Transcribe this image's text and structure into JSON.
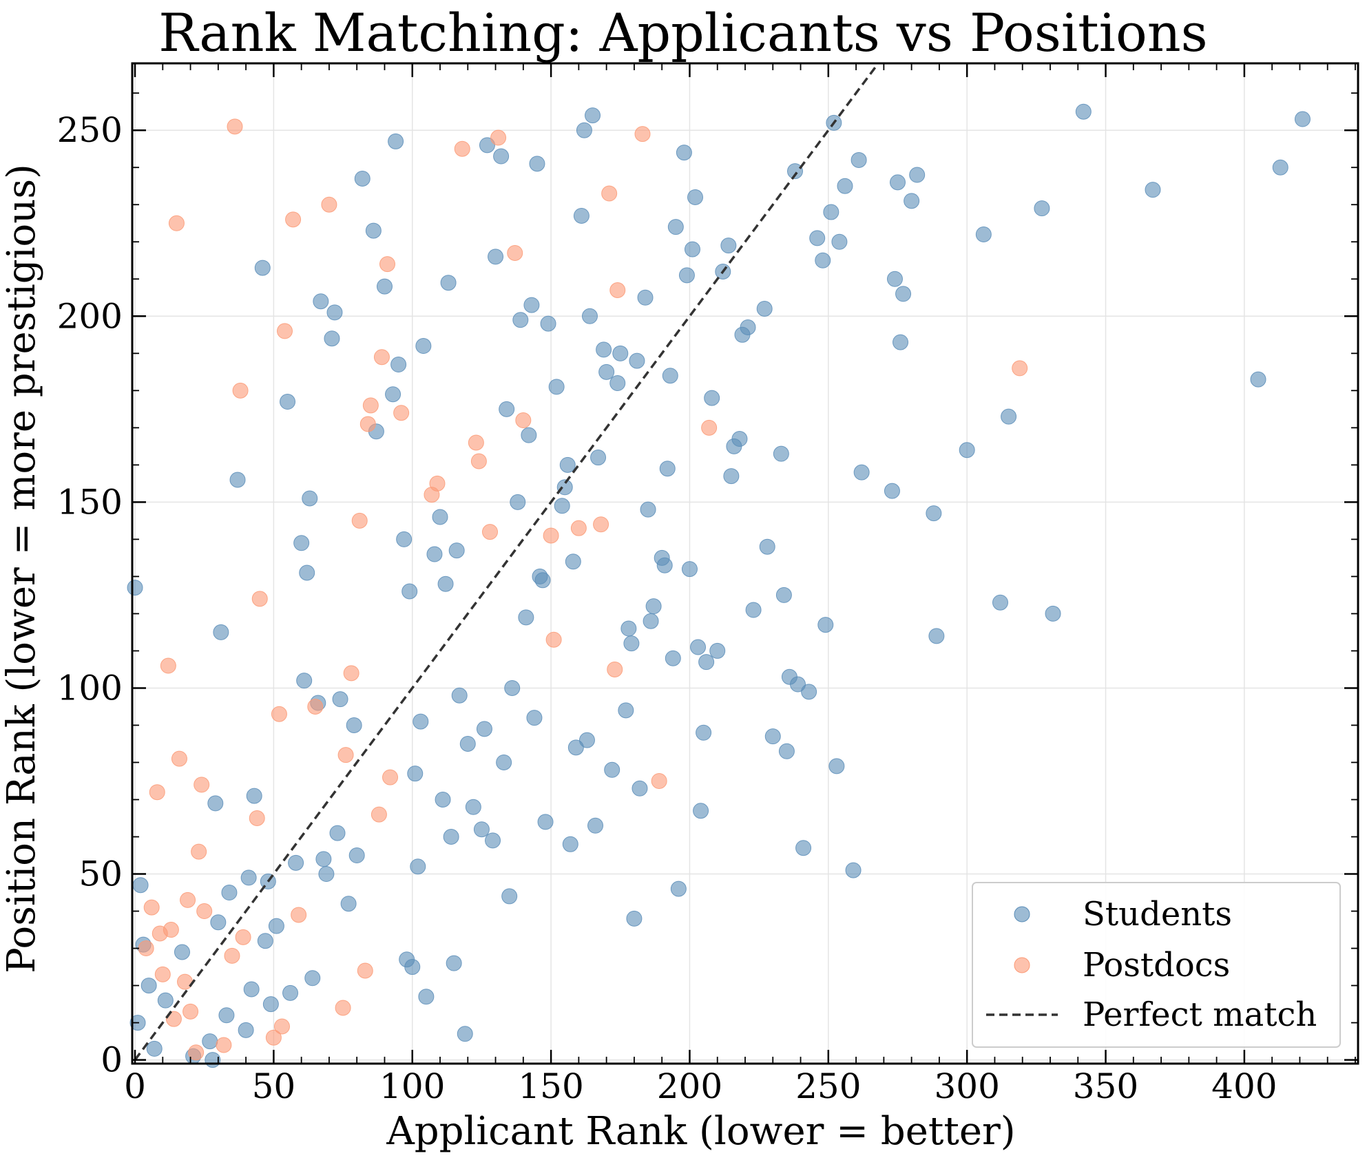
{
  "chart_data": {
    "type": "scatter",
    "title": "Rank Matching: Applicants vs Positions",
    "xlabel": "Applicant Rank (lower = better)",
    "ylabel": "Position Rank (lower = more prestigious)",
    "xlim": [
      -1,
      441
    ],
    "ylim": [
      -1,
      268
    ],
    "xticks": [
      0,
      50,
      100,
      150,
      200,
      250,
      300,
      350,
      400
    ],
    "yticks": [
      0,
      50,
      100,
      150,
      200,
      250
    ],
    "grid": true,
    "legend_position": "lower-right",
    "series": [
      {
        "name": "Students",
        "color": "#5b8db8",
        "points": [
          [
            0,
            127
          ],
          [
            1,
            10
          ],
          [
            2,
            47
          ],
          [
            3,
            31
          ],
          [
            5,
            20
          ],
          [
            7,
            3
          ],
          [
            11,
            16
          ],
          [
            17,
            29
          ],
          [
            21,
            1
          ],
          [
            27,
            5
          ],
          [
            28,
            0
          ],
          [
            29,
            69
          ],
          [
            30,
            37
          ],
          [
            31,
            115
          ],
          [
            33,
            12
          ],
          [
            34,
            45
          ],
          [
            37,
            156
          ],
          [
            40,
            8
          ],
          [
            41,
            49
          ],
          [
            42,
            19
          ],
          [
            43,
            71
          ],
          [
            46,
            213
          ],
          [
            47,
            32
          ],
          [
            48,
            48
          ],
          [
            49,
            15
          ],
          [
            51,
            36
          ],
          [
            55,
            177
          ],
          [
            56,
            18
          ],
          [
            58,
            53
          ],
          [
            60,
            139
          ],
          [
            61,
            102
          ],
          [
            62,
            131
          ],
          [
            63,
            151
          ],
          [
            64,
            22
          ],
          [
            66,
            96
          ],
          [
            67,
            204
          ],
          [
            68,
            54
          ],
          [
            69,
            50
          ],
          [
            71,
            194
          ],
          [
            72,
            201
          ],
          [
            73,
            61
          ],
          [
            74,
            97
          ],
          [
            77,
            42
          ],
          [
            79,
            90
          ],
          [
            80,
            55
          ],
          [
            82,
            237
          ],
          [
            86,
            223
          ],
          [
            87,
            169
          ],
          [
            90,
            208
          ],
          [
            93,
            179
          ],
          [
            94,
            247
          ],
          [
            95,
            187
          ],
          [
            97,
            140
          ],
          [
            98,
            27
          ],
          [
            99,
            126
          ],
          [
            100,
            25
          ],
          [
            101,
            77
          ],
          [
            102,
            52
          ],
          [
            103,
            91
          ],
          [
            104,
            192
          ],
          [
            105,
            17
          ],
          [
            108,
            136
          ],
          [
            110,
            146
          ],
          [
            111,
            70
          ],
          [
            112,
            128
          ],
          [
            113,
            209
          ],
          [
            114,
            60
          ],
          [
            115,
            26
          ],
          [
            116,
            137
          ],
          [
            117,
            98
          ],
          [
            119,
            7
          ],
          [
            120,
            85
          ],
          [
            122,
            68
          ],
          [
            125,
            62
          ],
          [
            126,
            89
          ],
          [
            127,
            246
          ],
          [
            129,
            59
          ],
          [
            130,
            216
          ],
          [
            132,
            243
          ],
          [
            133,
            80
          ],
          [
            134,
            175
          ],
          [
            135,
            44
          ],
          [
            136,
            100
          ],
          [
            138,
            150
          ],
          [
            139,
            199
          ],
          [
            141,
            119
          ],
          [
            142,
            168
          ],
          [
            143,
            203
          ],
          [
            144,
            92
          ],
          [
            145,
            241
          ],
          [
            146,
            130
          ],
          [
            147,
            129
          ],
          [
            148,
            64
          ],
          [
            149,
            198
          ],
          [
            152,
            181
          ],
          [
            154,
            149
          ],
          [
            155,
            154
          ],
          [
            156,
            160
          ],
          [
            157,
            58
          ],
          [
            158,
            134
          ],
          [
            159,
            84
          ],
          [
            161,
            227
          ],
          [
            162,
            250
          ],
          [
            163,
            86
          ],
          [
            164,
            200
          ],
          [
            165,
            254
          ],
          [
            166,
            63
          ],
          [
            167,
            162
          ],
          [
            169,
            191
          ],
          [
            170,
            185
          ],
          [
            172,
            78
          ],
          [
            174,
            182
          ],
          [
            175,
            190
          ],
          [
            177,
            94
          ],
          [
            178,
            116
          ],
          [
            179,
            112
          ],
          [
            180,
            38
          ],
          [
            181,
            188
          ],
          [
            182,
            73
          ],
          [
            184,
            205
          ],
          [
            185,
            148
          ],
          [
            186,
            118
          ],
          [
            187,
            122
          ],
          [
            190,
            135
          ],
          [
            191,
            133
          ],
          [
            192,
            159
          ],
          [
            193,
            184
          ],
          [
            194,
            108
          ],
          [
            195,
            224
          ],
          [
            196,
            46
          ],
          [
            198,
            244
          ],
          [
            199,
            211
          ],
          [
            200,
            132
          ],
          [
            201,
            218
          ],
          [
            202,
            232
          ],
          [
            203,
            111
          ],
          [
            204,
            67
          ],
          [
            205,
            88
          ],
          [
            206,
            107
          ],
          [
            208,
            178
          ],
          [
            210,
            110
          ],
          [
            212,
            212
          ],
          [
            214,
            219
          ],
          [
            215,
            157
          ],
          [
            216,
            165
          ],
          [
            218,
            167
          ],
          [
            219,
            195
          ],
          [
            221,
            197
          ],
          [
            223,
            121
          ],
          [
            227,
            202
          ],
          [
            228,
            138
          ],
          [
            230,
            87
          ],
          [
            233,
            163
          ],
          [
            234,
            125
          ],
          [
            235,
            83
          ],
          [
            236,
            103
          ],
          [
            238,
            239
          ],
          [
            239,
            101
          ],
          [
            241,
            57
          ],
          [
            243,
            99
          ],
          [
            246,
            221
          ],
          [
            248,
            215
          ],
          [
            249,
            117
          ],
          [
            251,
            228
          ],
          [
            252,
            252
          ],
          [
            253,
            79
          ],
          [
            254,
            220
          ],
          [
            256,
            235
          ],
          [
            259,
            51
          ],
          [
            261,
            242
          ],
          [
            262,
            158
          ],
          [
            273,
            153
          ],
          [
            274,
            210
          ],
          [
            275,
            236
          ],
          [
            277,
            206
          ],
          [
            276,
            193
          ],
          [
            280,
            231
          ],
          [
            282,
            238
          ],
          [
            288,
            147
          ],
          [
            289,
            114
          ],
          [
            300,
            164
          ],
          [
            306,
            222
          ],
          [
            312,
            123
          ],
          [
            315,
            173
          ],
          [
            327,
            229
          ],
          [
            331,
            120
          ],
          [
            342,
            255
          ],
          [
            367,
            234
          ],
          [
            405,
            183
          ],
          [
            413,
            240
          ],
          [
            421,
            253
          ]
        ]
      },
      {
        "name": "Postdocs",
        "color": "#fc9a76",
        "points": [
          [
            4,
            30
          ],
          [
            6,
            41
          ],
          [
            8,
            72
          ],
          [
            9,
            34
          ],
          [
            10,
            23
          ],
          [
            12,
            106
          ],
          [
            13,
            35
          ],
          [
            14,
            11
          ],
          [
            15,
            225
          ],
          [
            16,
            81
          ],
          [
            18,
            21
          ],
          [
            19,
            43
          ],
          [
            20,
            13
          ],
          [
            22,
            2
          ],
          [
            23,
            56
          ],
          [
            24,
            74
          ],
          [
            25,
            40
          ],
          [
            32,
            4
          ],
          [
            35,
            28
          ],
          [
            36,
            251
          ],
          [
            38,
            180
          ],
          [
            39,
            33
          ],
          [
            44,
            65
          ],
          [
            45,
            124
          ],
          [
            50,
            6
          ],
          [
            52,
            93
          ],
          [
            53,
            9
          ],
          [
            54,
            196
          ],
          [
            57,
            226
          ],
          [
            59,
            39
          ],
          [
            65,
            95
          ],
          [
            70,
            230
          ],
          [
            75,
            14
          ],
          [
            76,
            82
          ],
          [
            78,
            104
          ],
          [
            81,
            145
          ],
          [
            83,
            24
          ],
          [
            84,
            171
          ],
          [
            85,
            176
          ],
          [
            88,
            66
          ],
          [
            89,
            189
          ],
          [
            91,
            214
          ],
          [
            92,
            76
          ],
          [
            96,
            174
          ],
          [
            107,
            152
          ],
          [
            109,
            155
          ],
          [
            118,
            245
          ],
          [
            123,
            166
          ],
          [
            124,
            161
          ],
          [
            128,
            142
          ],
          [
            131,
            248
          ],
          [
            137,
            217
          ],
          [
            140,
            172
          ],
          [
            150,
            141
          ],
          [
            151,
            113
          ],
          [
            160,
            143
          ],
          [
            168,
            144
          ],
          [
            171,
            233
          ],
          [
            173,
            105
          ],
          [
            174,
            207
          ],
          [
            183,
            249
          ],
          [
            189,
            75
          ],
          [
            207,
            170
          ],
          [
            319,
            186
          ]
        ]
      }
    ],
    "reference_line": {
      "name": "Perfect match",
      "style": "dashed",
      "color": "#333333",
      "from": [
        0,
        0
      ],
      "to": [
        268,
        268
      ]
    }
  }
}
